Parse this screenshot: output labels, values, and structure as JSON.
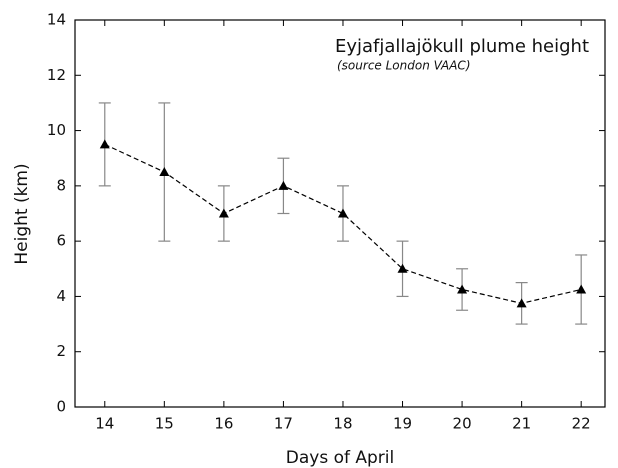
{
  "chart_data": {
    "type": "line",
    "title": "Eyjafjallajökull plume height",
    "subtitle": "(source London VAAC)",
    "x_label": "Days of April",
    "y_label": "Height (km)",
    "x": [
      14,
      15,
      16,
      17,
      18,
      19,
      20,
      21,
      22
    ],
    "series": [
      {
        "name": "Plume height",
        "color": "#000000",
        "values": [
          9.5,
          8.5,
          7,
          8,
          7,
          5,
          4.25,
          3.75,
          4.25
        ],
        "errors": [
          1.5,
          2.5,
          1,
          1,
          1,
          1,
          0.75,
          0.75,
          1.25
        ]
      }
    ],
    "error_color": "#888888",
    "xlim": [
      13.5,
      22.4
    ],
    "xticks": [
      14,
      15,
      16,
      17,
      18,
      19,
      20,
      21,
      22
    ],
    "ylim": [
      0,
      14
    ],
    "yticks": [
      0,
      2,
      4,
      6,
      8,
      10,
      12,
      14
    ]
  }
}
